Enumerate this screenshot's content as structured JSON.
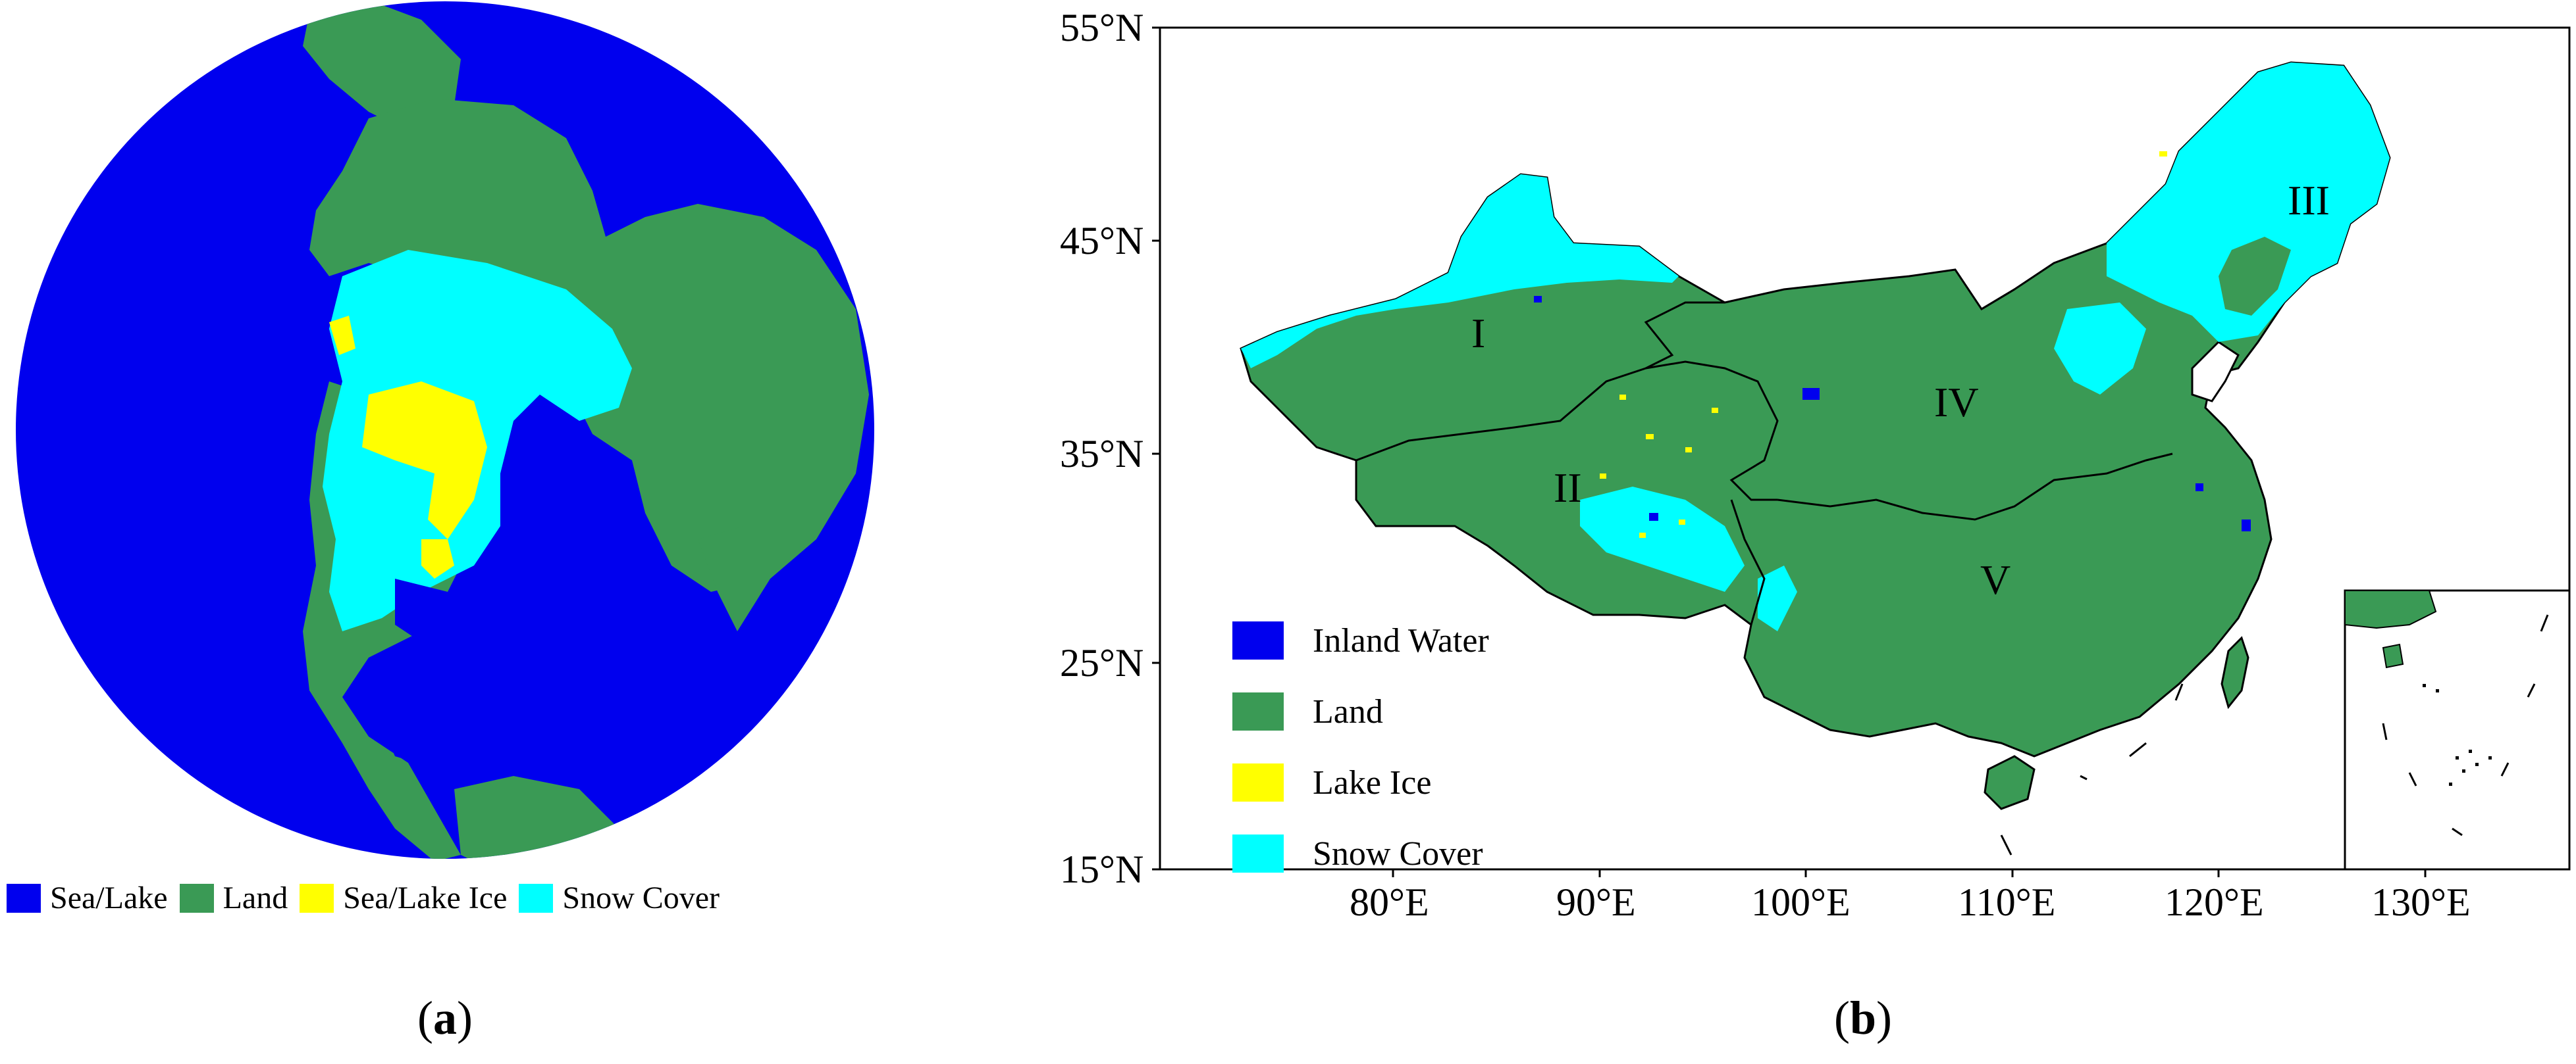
{
  "colors": {
    "sea": "#0000ee",
    "land": "#3a9a55",
    "ice": "#ffff00",
    "snow": "#00ffff"
  },
  "panel_a": {
    "legend": [
      "Sea/Lake",
      "Land",
      "Sea/Lake Ice",
      "Snow Cover"
    ],
    "caption": "a"
  },
  "panel_b": {
    "lat_ticks": [
      "55°N",
      "45°N",
      "35°N",
      "25°N",
      "15°N"
    ],
    "lon_ticks": [
      "80°E",
      "90°E",
      "100°E",
      "110°E",
      "120°E",
      "130°E"
    ],
    "legend": [
      "Inland Water",
      "Land",
      "Lake Ice",
      "Snow Cover"
    ],
    "regions": [
      "I",
      "II",
      "III",
      "IV",
      "V"
    ],
    "caption": "b"
  }
}
